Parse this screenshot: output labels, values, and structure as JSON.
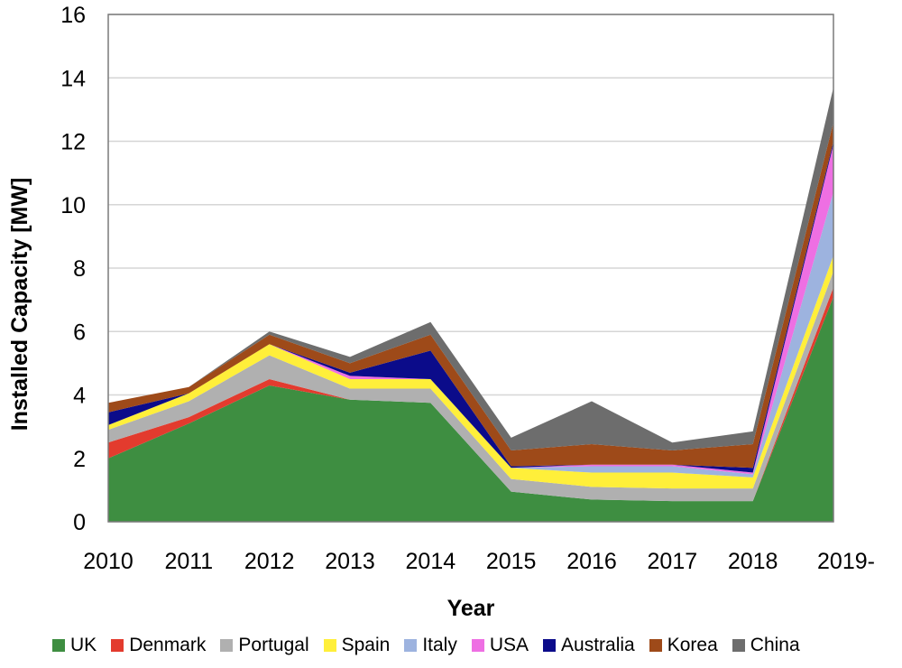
{
  "chart_data": {
    "type": "area",
    "stacked": true,
    "title": "",
    "xlabel": "Year",
    "ylabel": "Installed Capacity [MW]",
    "categories": [
      "2010",
      "2011",
      "2012",
      "2013",
      "2014",
      "2015",
      "2016",
      "2017",
      "2018",
      "2019-"
    ],
    "ylim": [
      0,
      16
    ],
    "yticks": [
      "0",
      "2",
      "4",
      "6",
      "8",
      "10",
      "12",
      "14",
      "16"
    ],
    "grid": true,
    "legend_position": "bottom",
    "series": [
      {
        "name": "UK",
        "color": "#3e8e41",
        "values": [
          2.0,
          3.1,
          4.3,
          3.85,
          3.75,
          0.95,
          0.7,
          0.65,
          0.65,
          7.1
        ]
      },
      {
        "name": "Denmark",
        "color": "#e33b2e",
        "values": [
          0.5,
          0.2,
          0.2,
          0.0,
          0.0,
          0.0,
          0.0,
          0.0,
          0.0,
          0.3
        ]
      },
      {
        "name": "Portugal",
        "color": "#b0b0b0",
        "values": [
          0.4,
          0.5,
          0.75,
          0.35,
          0.45,
          0.4,
          0.4,
          0.4,
          0.4,
          0.5
        ]
      },
      {
        "name": "Spain",
        "color": "#ffef3a",
        "values": [
          0.15,
          0.25,
          0.35,
          0.3,
          0.3,
          0.35,
          0.45,
          0.5,
          0.35,
          0.5
        ]
      },
      {
        "name": "Italy",
        "color": "#9db3df",
        "values": [
          0.0,
          0.0,
          0.0,
          0.0,
          0.0,
          0.0,
          0.2,
          0.2,
          0.1,
          2.0
        ]
      },
      {
        "name": "USA",
        "color": "#ee6fe3",
        "values": [
          0.0,
          0.0,
          0.0,
          0.1,
          0.0,
          0.0,
          0.05,
          0.05,
          0.05,
          1.5
        ]
      },
      {
        "name": "Australia",
        "color": "#0b0b8a",
        "values": [
          0.4,
          0.0,
          0.0,
          0.1,
          0.9,
          0.05,
          0.0,
          0.0,
          0.15,
          0.1
        ]
      },
      {
        "name": "Korea",
        "color": "#9e4a19",
        "values": [
          0.3,
          0.2,
          0.3,
          0.3,
          0.5,
          0.5,
          0.65,
          0.45,
          0.75,
          0.6
        ]
      },
      {
        "name": "China",
        "color": "#6d6d6d",
        "values": [
          0.0,
          0.0,
          0.1,
          0.2,
          0.4,
          0.4,
          1.35,
          0.25,
          0.4,
          1.1
        ]
      }
    ]
  }
}
